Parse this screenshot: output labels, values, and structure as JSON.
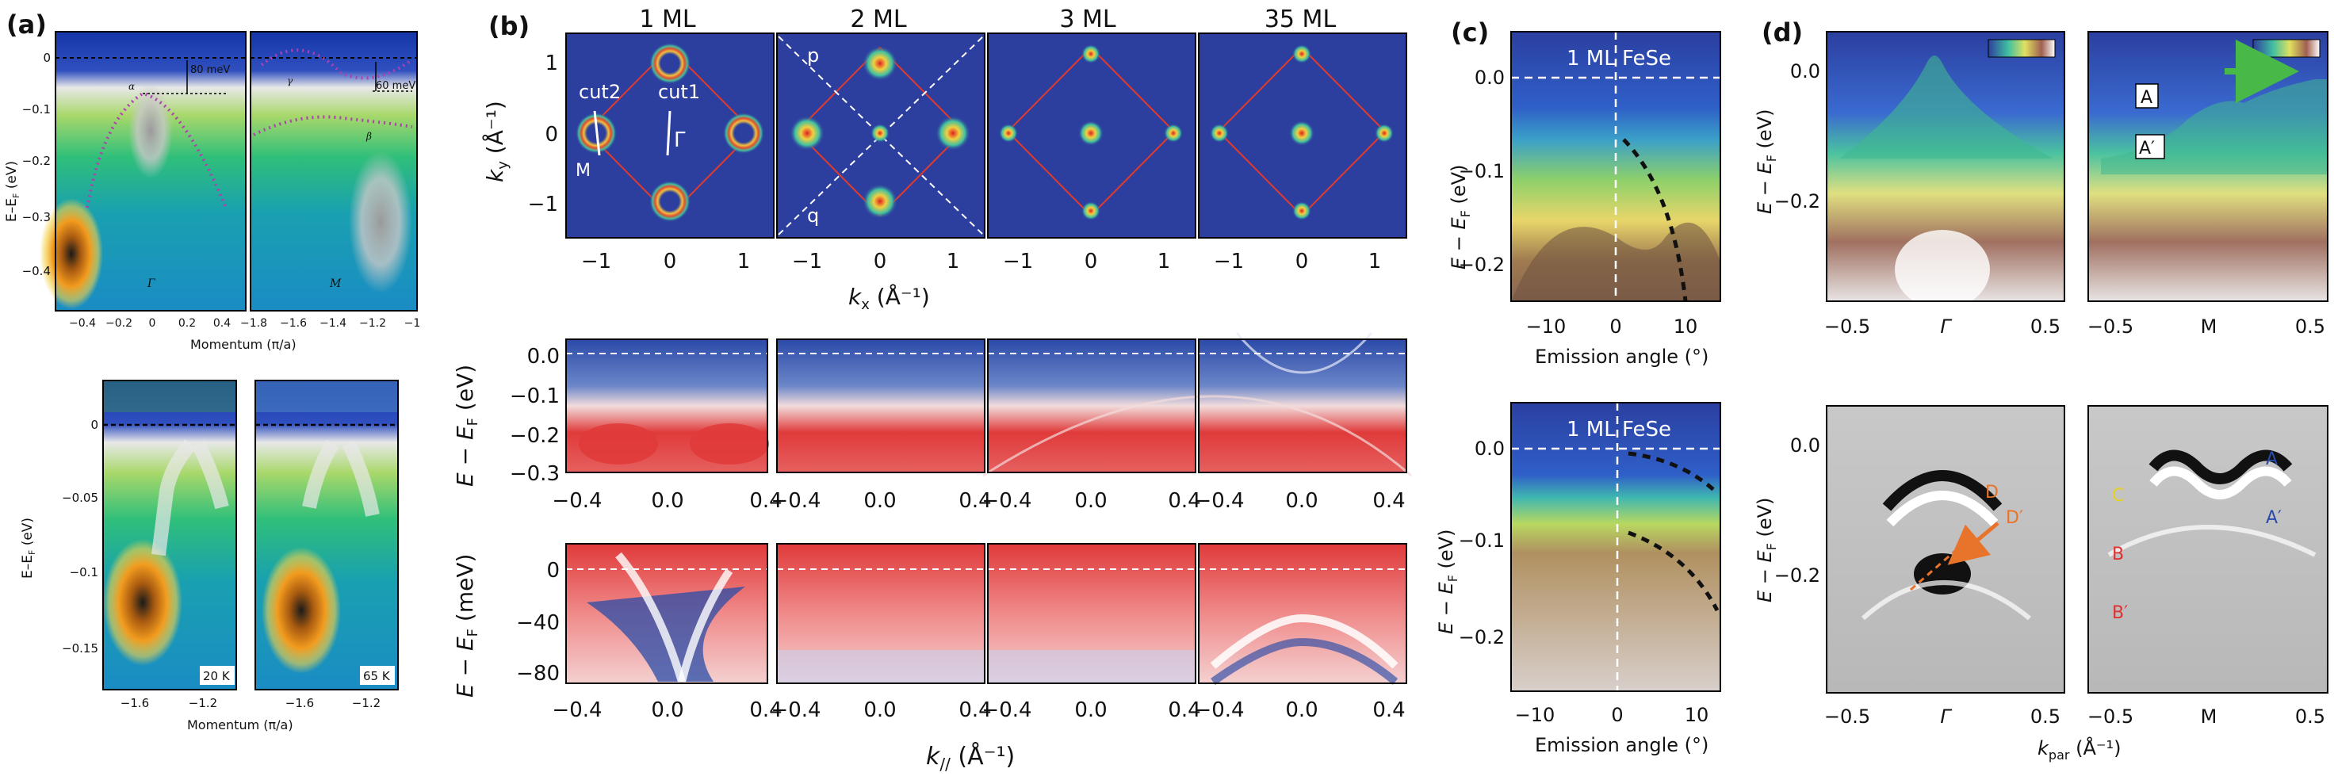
{
  "panels": {
    "a": {
      "letter": "(a)",
      "ylabel": "E–E",
      "ylabel_sub": "F",
      "ylabel_unit": " (eV)",
      "top_y_ticks": [
        "0",
        "−0.1",
        "−0.2",
        "−0.3",
        "−0.4"
      ],
      "gamma_x_ticks": [
        "−0.4",
        "−0.2",
        "0",
        "0.2",
        "0.4"
      ],
      "m_x_ticks": [
        "−1.8",
        "−1.6",
        "−1.4",
        "−1.2",
        "−1"
      ],
      "gamma_label": "Γ",
      "m_label": "M",
      "ann_80": "80 meV",
      "ann_60": "60 meV",
      "alpha": "α",
      "beta": "β",
      "gamma_band": "γ",
      "xlabel": "Momentum (π/a)",
      "bottom_y_ticks": [
        "0",
        "−0.05",
        "−0.1",
        "−0.15"
      ],
      "bottom_x_ticks_left": [
        "−1.6",
        "−1.2"
      ],
      "bottom_x_ticks_right": [
        "−1.6",
        "−1.2"
      ],
      "temp_left": "20 K",
      "temp_right": "65 K",
      "bottom_xlabel": "Momentum (π/a)"
    },
    "b": {
      "letter": "(b)",
      "titles": [
        "1 ML",
        "2 ML",
        "3 ML",
        "35 ML"
      ],
      "fs_ylabel": "k",
      "fs_ylabel_sub": "y",
      "fs_ylabel_unit": " (Å⁻¹)",
      "fs_y_ticks": [
        "1",
        "0",
        "−1"
      ],
      "fs_x_ticks": [
        "−1",
        "0",
        "1"
      ],
      "fs_xlabel": "k",
      "fs_xlabel_sub": "x",
      "fs_xlabel_unit": " (Å⁻¹)",
      "cut1": "cut1",
      "cut2": "cut2",
      "m_point": "M",
      "gamma_point": "Γ",
      "p": "p",
      "q": "q",
      "row2_ylabel": "E − E",
      "row2_ylabel_sub": "F",
      "row2_ylabel_unit": " (eV)",
      "row2_y_ticks": [
        "0.0",
        "−0.1",
        "−0.2",
        "−0.3"
      ],
      "row3_ylabel": "E − E",
      "row3_ylabel_sub": "F",
      "row3_ylabel_unit": " (meV)",
      "row3_y_ticks": [
        "0",
        "−40",
        "−80"
      ],
      "k_ticks": [
        "−0.4",
        "0.0",
        "0.4"
      ],
      "k_xlabel": "k",
      "k_xlabel_sub": "//",
      "k_xlabel_unit": " (Å⁻¹)"
    },
    "c": {
      "letter": "(c)",
      "top_label": "1 ML FeSe",
      "bottom_label": "1 ML FeSe",
      "ylabel": "E − E",
      "ylabel_sub": "F",
      "ylabel_unit": " (eV)",
      "top_y_ticks": [
        "0.0",
        "−0.1",
        "−0.2"
      ],
      "top_x_ticks": [
        "−10",
        "0",
        "10"
      ],
      "bottom_y_ticks": [
        "0.0",
        "−0.1",
        "−0.2"
      ],
      "bottom_x_ticks": [
        "−10",
        "0",
        "10"
      ],
      "xlabel": "Emission angle (°)"
    },
    "d": {
      "letter": "(d)",
      "ylabel": "E − E",
      "ylabel_sub": "F",
      "ylabel_unit": " (eV)",
      "top_y_ticks": [
        "0.0",
        "−0.2"
      ],
      "bottom_y_ticks": [
        "0.0",
        "−0.2"
      ],
      "x_ticks_left": [
        "−0.5",
        "Γ",
        "0.5"
      ],
      "x_ticks_right": [
        "−0.5",
        "M",
        "0.5"
      ],
      "label_A": "A",
      "label_A2": "A′",
      "label_B": "B",
      "label_B2": "B′",
      "label_C": "C",
      "label_D": "D",
      "label_D2": "D′",
      "xlabel": "k",
      "xlabel_sub": "par",
      "xlabel_unit": " (Å⁻¹)"
    }
  },
  "colors": {
    "arpes_blue": "#2d3f9e",
    "red_line": "#e23a2a",
    "magenta_dots": "#b03fb0",
    "divergent_red": "#e03a3a",
    "divergent_blue": "#2a4ca8"
  }
}
